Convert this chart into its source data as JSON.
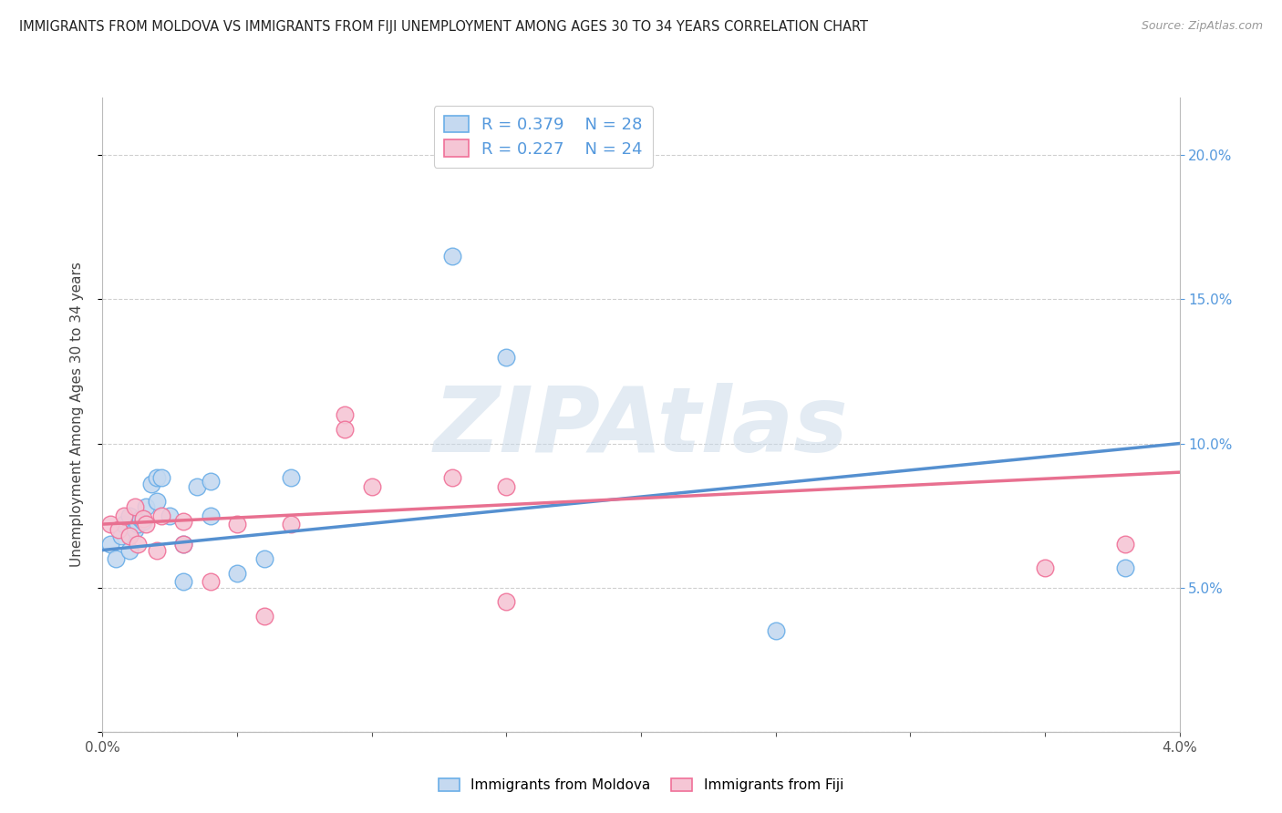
{
  "title": "IMMIGRANTS FROM MOLDOVA VS IMMIGRANTS FROM FIJI UNEMPLOYMENT AMONG AGES 30 TO 34 YEARS CORRELATION CHART",
  "source": "Source: ZipAtlas.com",
  "ylabel": "Unemployment Among Ages 30 to 34 years",
  "x_min": 0.0,
  "x_max": 0.04,
  "y_min": 0.0,
  "y_max": 0.22,
  "right_yticks": [
    0.05,
    0.1,
    0.15,
    0.2
  ],
  "moldova_color": "#c5d9f0",
  "moldova_edge_color": "#6aaee8",
  "fiji_color": "#f5c6d5",
  "fiji_edge_color": "#f07098",
  "moldova_line_color": "#5590d0",
  "fiji_line_color": "#e87090",
  "moldova_R": 0.379,
  "moldova_N": 28,
  "fiji_R": 0.227,
  "fiji_N": 24,
  "moldova_x": [
    0.0003,
    0.0005,
    0.0007,
    0.0008,
    0.001,
    0.001,
    0.0012,
    0.0013,
    0.0014,
    0.0015,
    0.0016,
    0.0018,
    0.002,
    0.002,
    0.0022,
    0.0025,
    0.003,
    0.003,
    0.0035,
    0.004,
    0.004,
    0.005,
    0.006,
    0.007,
    0.013,
    0.015,
    0.025,
    0.038
  ],
  "moldova_y": [
    0.065,
    0.06,
    0.068,
    0.072,
    0.075,
    0.063,
    0.07,
    0.072,
    0.074,
    0.073,
    0.078,
    0.086,
    0.088,
    0.08,
    0.088,
    0.075,
    0.065,
    0.052,
    0.085,
    0.087,
    0.075,
    0.055,
    0.06,
    0.088,
    0.165,
    0.13,
    0.035,
    0.057
  ],
  "fiji_x": [
    0.0003,
    0.0006,
    0.0008,
    0.001,
    0.0012,
    0.0013,
    0.0015,
    0.0016,
    0.002,
    0.0022,
    0.003,
    0.003,
    0.004,
    0.005,
    0.006,
    0.007,
    0.009,
    0.009,
    0.01,
    0.013,
    0.015,
    0.015,
    0.035,
    0.038
  ],
  "fiji_y": [
    0.072,
    0.07,
    0.075,
    0.068,
    0.078,
    0.065,
    0.074,
    0.072,
    0.063,
    0.075,
    0.073,
    0.065,
    0.052,
    0.072,
    0.04,
    0.072,
    0.11,
    0.105,
    0.085,
    0.088,
    0.085,
    0.045,
    0.057,
    0.065
  ],
  "moldova_trend": [
    0.063,
    0.1
  ],
  "fiji_trend": [
    0.072,
    0.09
  ],
  "watermark": "ZIPAtlas",
  "background_color": "#ffffff",
  "grid_color": "#d0d0d0",
  "marker_size": 180
}
